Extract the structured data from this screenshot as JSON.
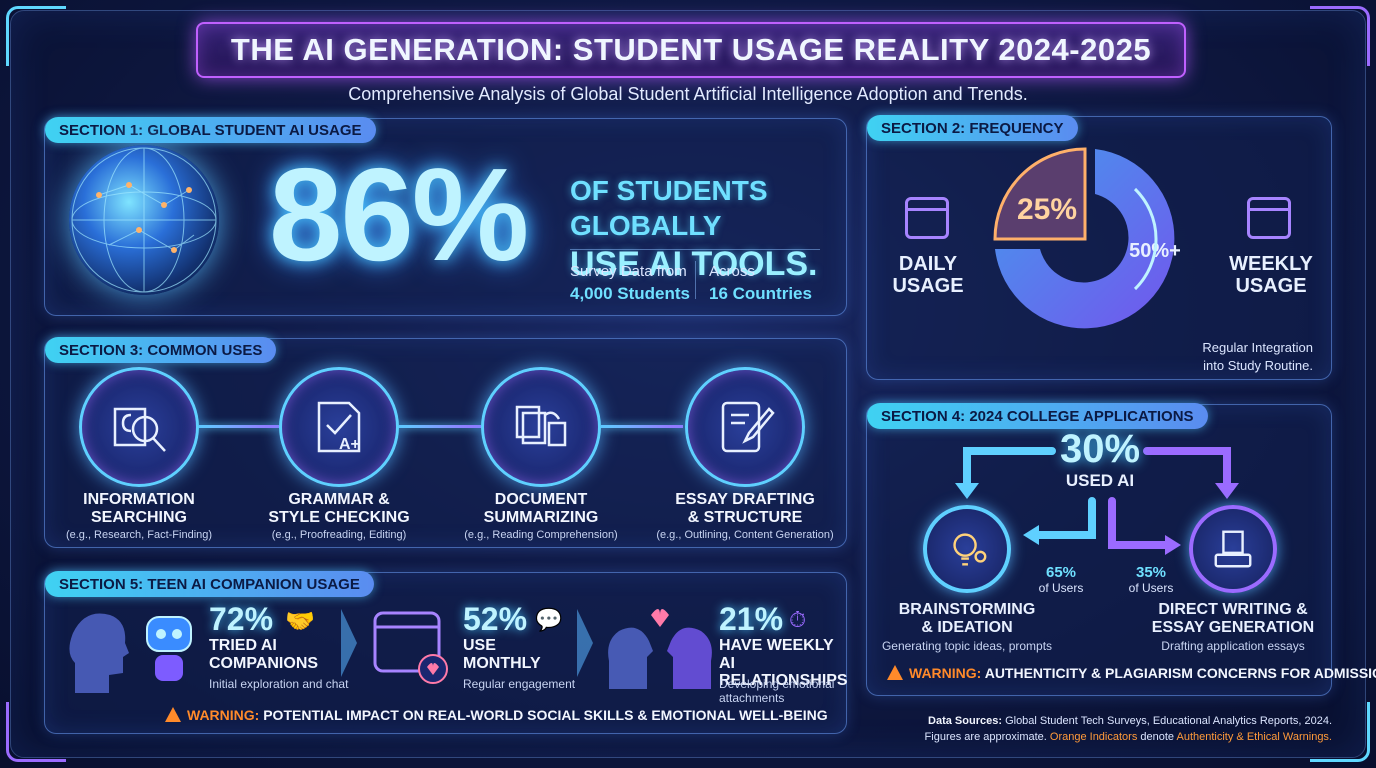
{
  "header": {
    "title": "THE AI GENERATION: STUDENT USAGE REALITY 2024-2025",
    "subtitle": "Comprehensive Analysis of Global Student Artificial Intelligence Adoption and Trends."
  },
  "section1": {
    "label": "SECTION 1: GLOBAL STUDENT AI USAGE",
    "percent": "86%",
    "headline_line1": "OF STUDENTS GLOBALLY",
    "headline_line2": "USE AI TOOLS.",
    "survey_label": "Survey Data from",
    "survey_value": "4,000 Students",
    "across_label": "Across",
    "across_value": "16 Countries"
  },
  "section2": {
    "label": "SECTION 2: FREQUENCY",
    "daily_pct": "25%",
    "weekly_pct": "50%+",
    "daily_value": 25,
    "weekly_value": 50,
    "daily_label_1": "DAILY",
    "daily_label_2": "USAGE",
    "weekly_label_1": "WEEKLY",
    "weekly_label_2": "USAGE",
    "note_line1": "Regular Integration",
    "note_line2": "into Study Routine."
  },
  "section3": {
    "label": "SECTION 3: COMMON USES",
    "uses": [
      {
        "title_1": "INFORMATION",
        "title_2": "SEARCHING",
        "sub": "(e.g., Research, Fact-Finding)",
        "icon": "brain-magnifier-icon"
      },
      {
        "title_1": "GRAMMAR &",
        "title_2": "STYLE CHECKING",
        "sub": "(e.g., Proofreading, Editing)",
        "icon": "grade-check-icon"
      },
      {
        "title_1": "DOCUMENT",
        "title_2": "SUMMARIZING",
        "sub": "(e.g., Reading Comprehension)",
        "icon": "documents-icon"
      },
      {
        "title_1": "ESSAY DRAFTING",
        "title_2": "& STRUCTURE",
        "sub": "(e.g., Outlining, Content Generation)",
        "icon": "tablet-pen-icon"
      }
    ]
  },
  "section4": {
    "label": "SECTION 4: 2024 COLLEGE APPLICATIONS",
    "percent": "30%",
    "used_ai": "USED AI",
    "left_pct": "65%",
    "left_users": "of Users",
    "right_pct": "35%",
    "right_users": "of Users",
    "left_title_1": "BRAINSTORMING",
    "left_title_2": "& IDEATION",
    "left_sub": "Generating topic ideas, prompts",
    "right_title_1": "DIRECT WRITING &",
    "right_title_2": "ESSAY GENERATION",
    "right_sub": "Drafting application essays",
    "warning_word": "WARNING:",
    "warning_text": "AUTHENTICITY & PLAGIARISM CONCERNS FOR ADMISSIONS"
  },
  "section5": {
    "label": "SECTION 5: TEEN AI COMPANION USAGE",
    "stats": [
      {
        "pct": "72%",
        "title_1": "TRIED AI",
        "title_2": "COMPANIONS",
        "sub_1": "Initial exploration and chat",
        "sub_2": ""
      },
      {
        "pct": "52%",
        "title_1": "USE",
        "title_2": "MONTHLY",
        "sub_1": "Regular engagement",
        "sub_2": ""
      },
      {
        "pct": "21%",
        "title_1": "HAVE WEEKLY AI",
        "title_2": "RELATIONSHIPS",
        "sub_1": "Developing emotional",
        "sub_2": "attachments"
      }
    ],
    "warning_word": "WARNING:",
    "warning_text": "POTENTIAL IMPACT ON REAL-WORLD SOCIAL SKILLS & EMOTIONAL WELL-BEING"
  },
  "footer": {
    "sources_label": "Data Sources:",
    "sources_text": "Global Student Tech Surveys, Educational Analytics Reports, 2024.",
    "line2_a": "Figures are approximate.",
    "line2_b": "Orange Indicators",
    "line2_c": "denote",
    "line2_d": "Authenticity & Ethical Warnings."
  },
  "colors": {
    "accent_cyan": "#5fd0ff",
    "accent_purple": "#9b6bff",
    "warning_orange": "#ff8a2a"
  }
}
